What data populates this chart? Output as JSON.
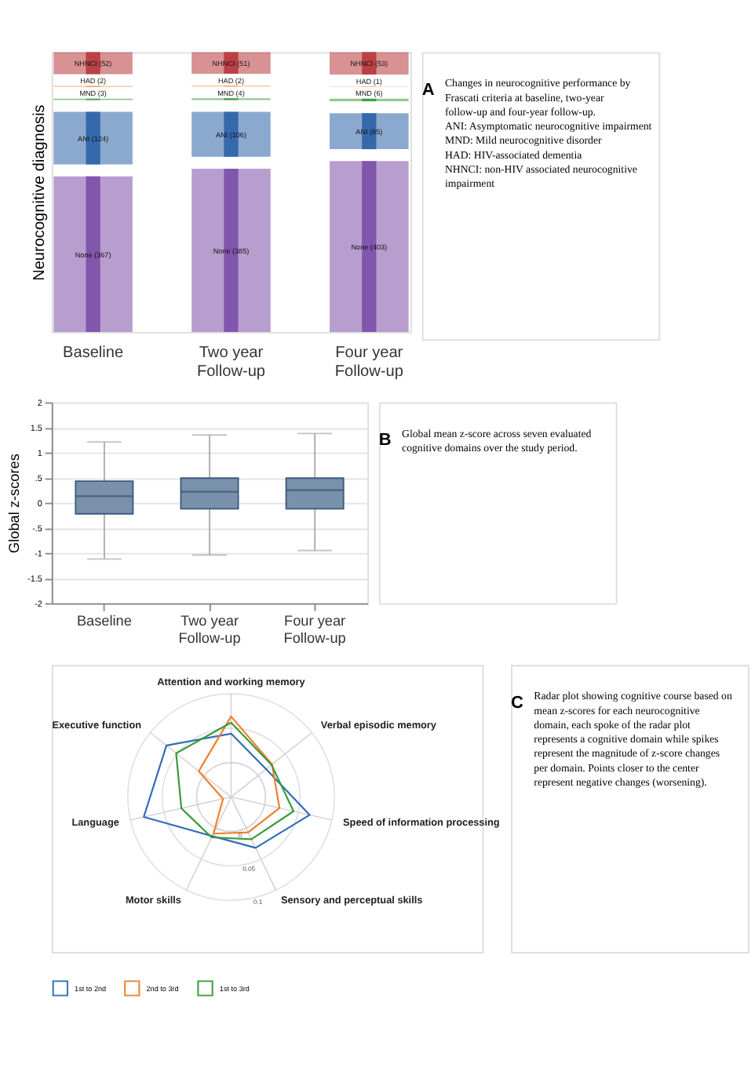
{
  "chart_data": [
    {
      "type": "other",
      "ylabel": "Neurocognitive diagnosis",
      "categories": [
        "Baseline",
        "Two year\nFollow-up",
        "Four year\nFollow-up"
      ],
      "series": [
        {
          "color": "#b8393c",
          "values": [
            52,
            51,
            53
          ],
          "value_labels": [
            "NHNCI (52)",
            "NHNCI (51)",
            "NHNCI (53)"
          ]
        },
        {
          "color": "#f28e2b",
          "values": [
            2,
            2,
            1
          ],
          "value_labels": [
            "HAD (2)",
            "HAD (2)",
            "HAD (1)"
          ]
        },
        {
          "color": "#3a9a3a",
          "values": [
            3,
            4,
            6
          ],
          "value_labels": [
            "MND (3)",
            "MND (4)",
            "MND (6)"
          ]
        },
        {
          "color": "#2c62a8",
          "values": [
            124,
            106,
            85
          ],
          "value_labels": [
            "ANI (124)",
            "ANI (106)",
            "ANI (85)"
          ]
        },
        {
          "color": "#7b4fa8",
          "values": [
            367,
            385,
            403
          ],
          "value_labels": [
            "None (367)",
            "None (385)",
            "None (403)"
          ]
        }
      ],
      "annotations": [
        "A",
        "Changes in neurocognitive performance by Frascati criteria at baseline, two-year follow-up and four-year follow-up.",
        "ANI: Asymptomatic neurocognitive impairment",
        "MND: Mild neurocognitive disorder",
        "HAD: HIV-associated dementia",
        "NHNCI: non-HIV associated neurocognitive impairment"
      ]
    },
    {
      "type": "box",
      "ylabel": "Global z-scores",
      "categories": [
        "Baseline",
        "Two year\nFollow-up",
        "Four year\nFollow-up"
      ],
      "color": "#7a91ab",
      "boxes": [
        {
          "low": -1.12,
          "q1": -0.22,
          "median": 0.13,
          "q3": 0.43,
          "high": 1.21
        },
        {
          "low": -1.04,
          "q1": -0.12,
          "median": 0.22,
          "q3": 0.49,
          "high": 1.35
        },
        {
          "low": -0.95,
          "q1": -0.12,
          "median": 0.25,
          "q3": 0.49,
          "high": 1.38
        }
      ],
      "ylim": [
        -2,
        2
      ],
      "yticks": [
        -2,
        -1.5,
        -1,
        {
          "value": -0.5,
          "label": "-.5"
        },
        0,
        {
          "value": 0.5,
          "label": ".5"
        },
        1,
        1.5,
        2
      ],
      "grid": "y",
      "annotations": [
        "B",
        "Global mean z-score across seven evaluated cognitive domains over the study period."
      ]
    },
    {
      "type": "radar",
      "categories": [
        "Attention and working memory",
        "Verbal episodic memory",
        "Speed of information processing",
        "Sensory and perceptual skills",
        "Motor skills",
        "Language",
        "Executive function"
      ],
      "series": [
        {
          "name": "1st to 2nd",
          "color": "#2f6eb5",
          "values": [
            0.042,
            0.015,
            0.067,
            0.032,
            0.013,
            0.08,
            0.07
          ]
        },
        {
          "name": "2nd to 3rd",
          "color": "#f07f2e",
          "values": [
            0.067,
            0.026,
            0.022,
            0.007,
            0.009,
            -0.038,
            0.01
          ]
        },
        {
          "name": "1st to 3rd",
          "color": "#3a9a3a",
          "values": [
            0.058,
            0.025,
            0.043,
            0.018,
            0.015,
            0.024,
            0.052
          ]
        }
      ],
      "ylim": [
        -0.05,
        0.1
      ],
      "yticks": [
        0,
        0.05,
        0.1
      ],
      "legend": "bottom",
      "marker": "none",
      "line_style": "solid",
      "annotations": [
        "C",
        "Radar plot showing cognitive course based on mean z-scores for each neurocognitive domain, each spoke of the radar plot represents a cognitive domain while spikes represent the magnitude of z-score changes per domain. Points closer to the center represent negative changes (worsening)."
      ]
    }
  ]
}
